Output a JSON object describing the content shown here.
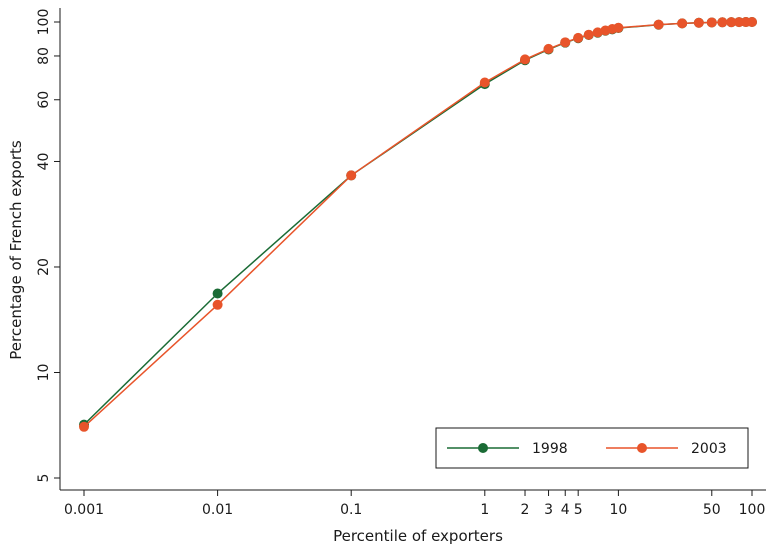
{
  "chart_data": {
    "type": "line",
    "xlabel": "Percentile of exporters",
    "ylabel": "Percentage of French exports",
    "x_scale": "log",
    "y_scale": "log",
    "xlim": [
      0.001,
      100
    ],
    "ylim": [
      5,
      100
    ],
    "x_ticks": [
      {
        "value": 0.001,
        "label": "0.001"
      },
      {
        "value": 0.01,
        "label": "0.01"
      },
      {
        "value": 0.1,
        "label": "0.1"
      },
      {
        "value": 1,
        "label": "1"
      },
      {
        "value": 2,
        "label": "2"
      },
      {
        "value": 3,
        "label": "3"
      },
      {
        "value": 4,
        "label": "4"
      },
      {
        "value": 5,
        "label": "5"
      },
      {
        "value": 10,
        "label": "10"
      },
      {
        "value": 50,
        "label": "50"
      },
      {
        "value": 100,
        "label": "100"
      }
    ],
    "y_ticks": [
      {
        "value": 5,
        "label": "5"
      },
      {
        "value": 10,
        "label": "10"
      },
      {
        "value": 20,
        "label": "20"
      },
      {
        "value": 40,
        "label": "40"
      },
      {
        "value": 60,
        "label": "60"
      },
      {
        "value": 80,
        "label": "80"
      },
      {
        "value": 100,
        "label": "100"
      }
    ],
    "grid": false,
    "legend_position": "bottom-right",
    "series": [
      {
        "name": "1998",
        "color": "#1a6b35",
        "x": [
          0.001,
          0.01,
          0.1,
          1,
          2,
          3,
          4,
          5,
          6,
          7,
          8,
          9,
          10,
          20,
          30,
          40,
          50,
          60,
          70,
          80,
          90,
          100
        ],
        "y": [
          7.1,
          16.8,
          36.5,
          66.5,
          77.8,
          83.5,
          87.3,
          89.9,
          91.8,
          93.2,
          94.4,
          95.3,
          96.1,
          98.2,
          99.1,
          99.5,
          99.7,
          99.8,
          99.9,
          99.95,
          99.98,
          100
        ]
      },
      {
        "name": "2003",
        "color": "#e8542a",
        "x": [
          0.001,
          0.01,
          0.1,
          1,
          2,
          3,
          4,
          5,
          6,
          7,
          8,
          9,
          10,
          20,
          30,
          40,
          50,
          60,
          70,
          80,
          90,
          100
        ],
        "y": [
          7.0,
          15.6,
          36.5,
          67.2,
          78.2,
          83.8,
          87.5,
          90.1,
          92.0,
          93.4,
          94.6,
          95.5,
          96.3,
          98.3,
          99.1,
          99.5,
          99.7,
          99.8,
          99.9,
          99.95,
          99.98,
          100
        ]
      }
    ]
  }
}
